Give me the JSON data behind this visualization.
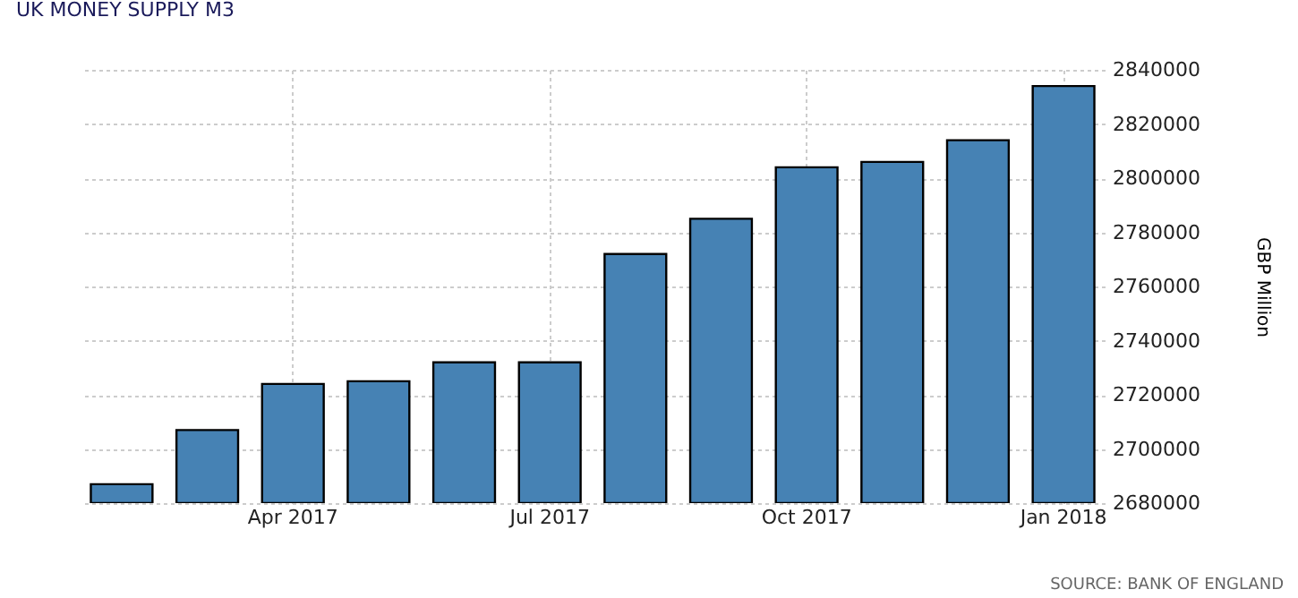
{
  "chart_data": {
    "type": "bar",
    "title": "UK MONEY SUPPLY M3",
    "ylabel": "GBP Million",
    "categories": [
      null,
      null,
      "Apr 2017",
      null,
      null,
      "Jul 2017",
      null,
      null,
      "Oct 2017",
      null,
      null,
      "Jan 2018"
    ],
    "values": [
      2687000,
      2707000,
      2724000,
      2725000,
      2732000,
      2732000,
      2772000,
      2785000,
      2804000,
      2806000,
      2814000,
      2834000
    ],
    "color": "#4682b4",
    "ylim": [
      2680000,
      2840000
    ],
    "yticks": [
      2680000,
      2700000,
      2720000,
      2740000,
      2760000,
      2780000,
      2800000,
      2820000,
      2840000
    ],
    "grid": true,
    "annotations": [
      "SOURCE: BANK OF ENGLAND"
    ]
  }
}
